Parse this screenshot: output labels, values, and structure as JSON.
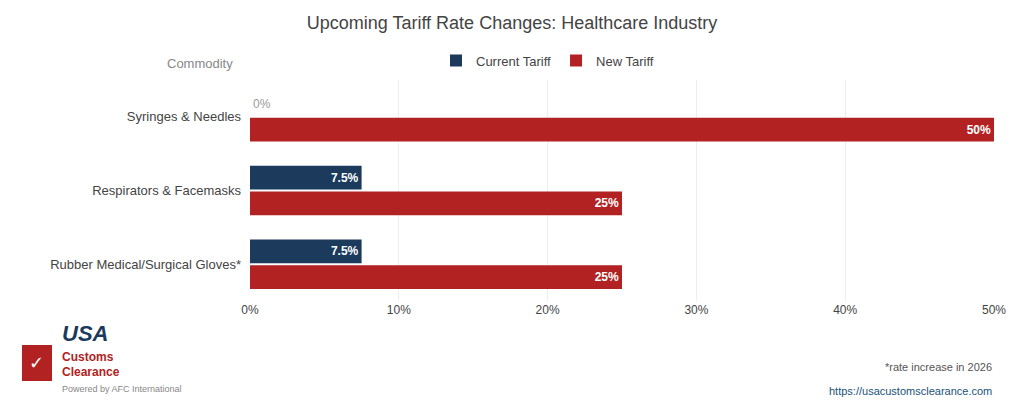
{
  "chart_data": {
    "type": "bar",
    "orientation": "horizontal",
    "title": "Upcoming Tariff Rate Changes: Healthcare Industry",
    "categories": [
      "Syringes & Needles",
      "Respirators & Facemasks",
      "Rubber Medical/Surgical Gloves*"
    ],
    "series": [
      {
        "name": "Current Tariff",
        "color": "#1b3a5c",
        "values": [
          0,
          7.5,
          7.5
        ],
        "value_labels": [
          "0%",
          "7.5%",
          "7.5%"
        ]
      },
      {
        "name": "New Tariff",
        "color": "#b22222",
        "values": [
          50,
          25,
          25
        ],
        "value_labels": [
          "50%",
          "25%",
          "25%"
        ]
      }
    ],
    "xlim": [
      0,
      50
    ],
    "xticks": [
      {
        "value": 0,
        "label": "0%"
      },
      {
        "value": 10,
        "label": "10%"
      },
      {
        "value": 20,
        "label": "20%"
      },
      {
        "value": 30,
        "label": "30%"
      },
      {
        "value": 40,
        "label": "40%"
      },
      {
        "value": 50,
        "label": "50%"
      }
    ],
    "grid": true,
    "legend": "top",
    "data_labels": true,
    "annotations": [
      "Commodity",
      "*rate increase in 2026",
      "https://usacustomsclearance.com",
      "✓",
      "USA",
      "Customs",
      "Clearance",
      "Powered by AFC International"
    ]
  }
}
